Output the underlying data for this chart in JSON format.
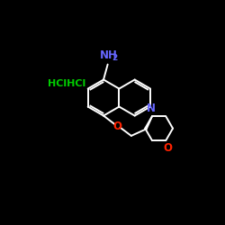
{
  "bg_color": "#000000",
  "bond_color": "#ffffff",
  "nh2_color": "#6666ff",
  "hcl_color": "#00cc00",
  "o_color": "#ff2200",
  "n_color": "#6666ff",
  "o2_color": "#ff2200",
  "NH2_text": "NH",
  "NH2_sub": "2",
  "HCl_text": "HClHCl",
  "O_text": "O",
  "N_text": "N",
  "O2_text": "O",
  "lw": 1.4
}
